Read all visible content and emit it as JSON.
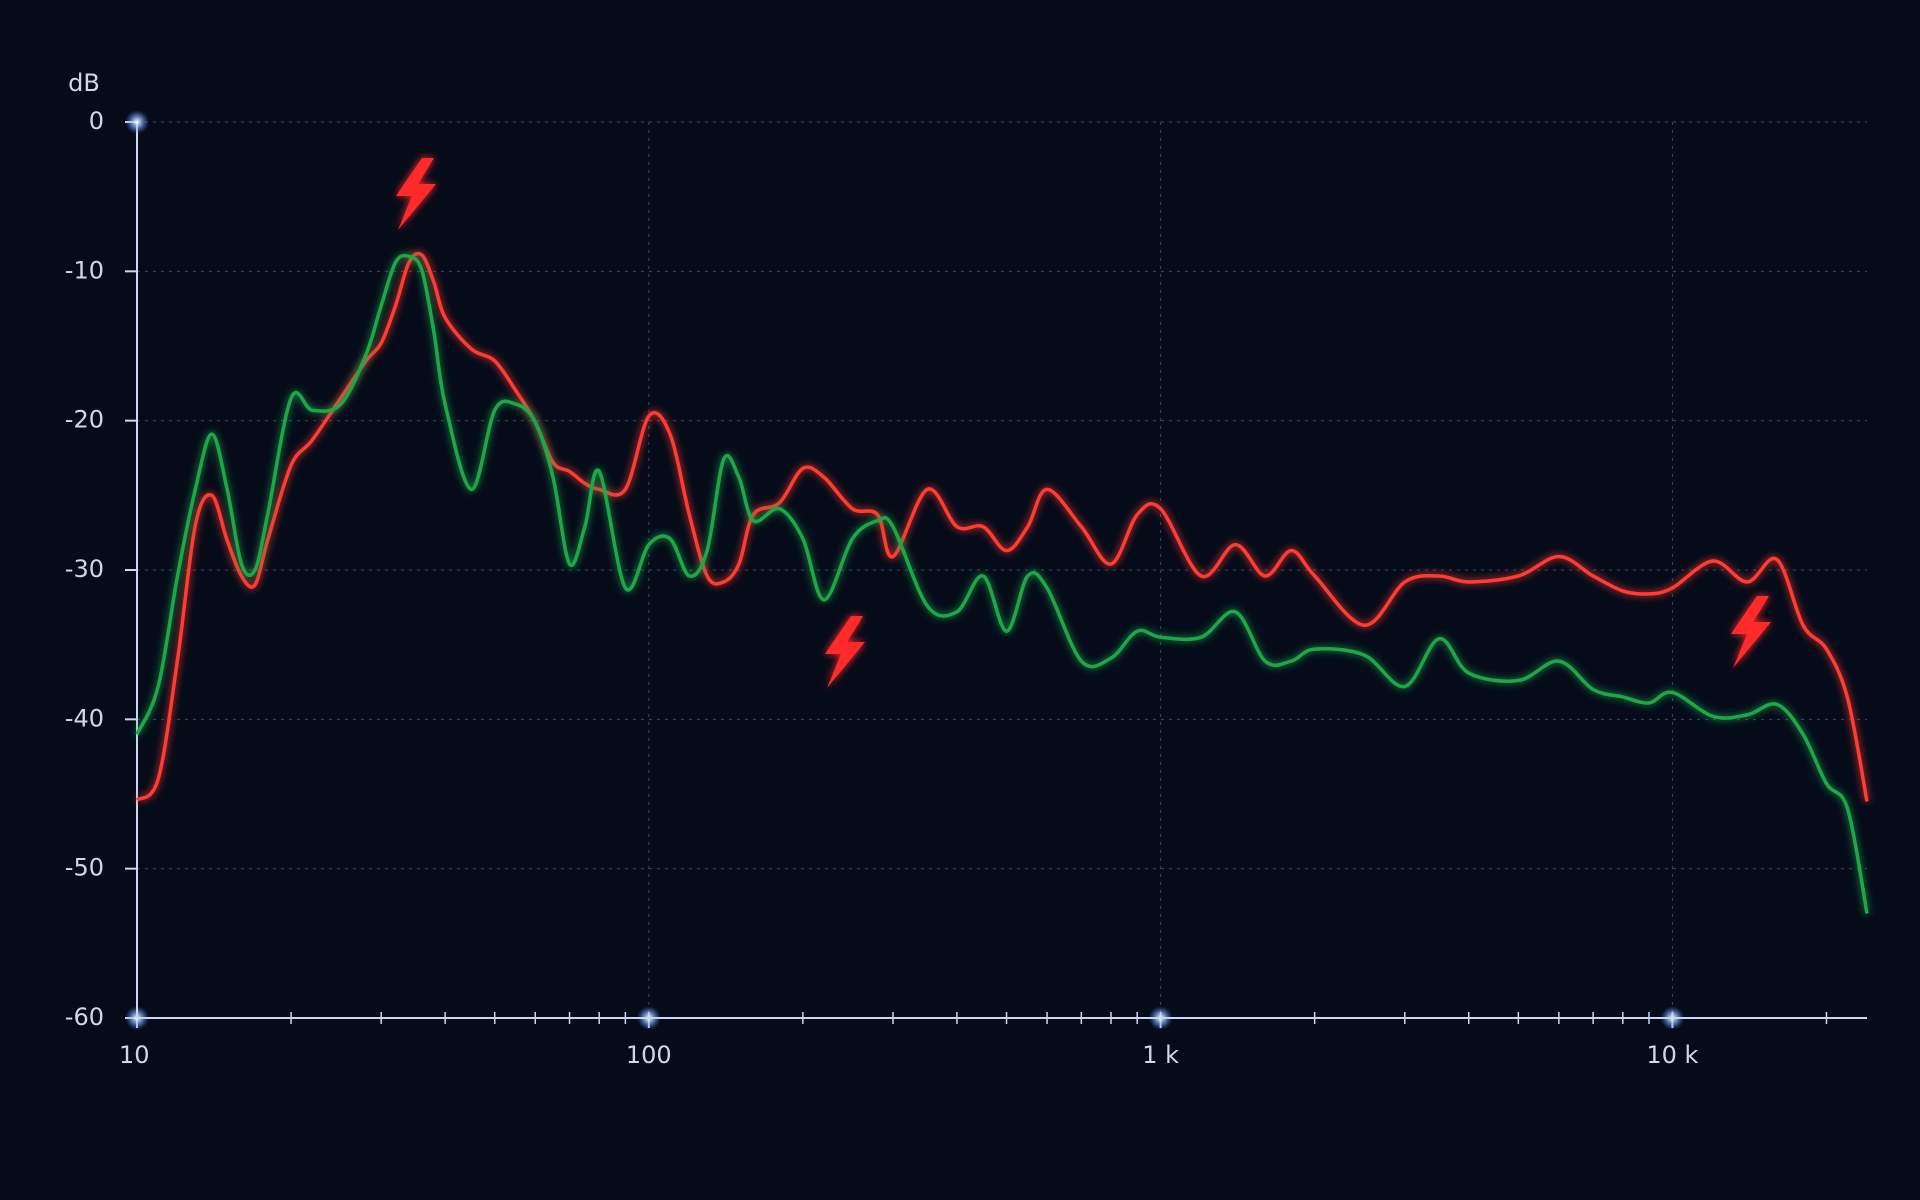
{
  "chart_data": {
    "type": "line",
    "ylabel": "dB",
    "xscale": "log",
    "grid": true,
    "xlim": [
      10,
      24000
    ],
    "ylim": [
      -60,
      0
    ],
    "xticks": [
      10,
      100,
      {
        "value": 1000,
        "label": "1 k"
      },
      {
        "value": 10000,
        "label": "10 k"
      }
    ],
    "xminorticks": [
      20,
      30,
      40,
      50,
      60,
      70,
      80,
      90,
      200,
      300,
      400,
      500,
      600,
      700,
      800,
      900,
      2000,
      3000,
      4000,
      5000,
      6000,
      7000,
      8000,
      9000,
      20000
    ],
    "yticks": [
      0,
      -10,
      -20,
      -30,
      -40,
      -50,
      -60
    ],
    "x": [
      10,
      11,
      12,
      13,
      14,
      15,
      16,
      17,
      18,
      20,
      22,
      25,
      28,
      30,
      32,
      34,
      36,
      38,
      40,
      45,
      50,
      55,
      60,
      65,
      70,
      75,
      80,
      90,
      100,
      110,
      120,
      130,
      140,
      150,
      160,
      180,
      200,
      220,
      250,
      280,
      300,
      350,
      400,
      450,
      500,
      550,
      600,
      700,
      800,
      900,
      1000,
      1200,
      1400,
      1600,
      1800,
      2000,
      2500,
      3000,
      3500,
      4000,
      5000,
      6000,
      7000,
      8000,
      9000,
      10000,
      12000,
      14000,
      16000,
      18000,
      20000,
      22000,
      24000
    ],
    "series": [
      {
        "color": "#ff3b30",
        "values": [
          -45.4,
          -44,
          -36,
          -27,
          -25,
          -28,
          -30.4,
          -31,
          -28,
          -23,
          -21.3,
          -18.5,
          -16,
          -14.8,
          -12.3,
          -9.4,
          -8.9,
          -10.7,
          -13.1,
          -15.2,
          -16,
          -18,
          -20.1,
          -22.8,
          -23.4,
          -24.2,
          -24.6,
          -24.6,
          -19.7,
          -20.9,
          -26.3,
          -30.4,
          -30.8,
          -29.6,
          -26.3,
          -25.5,
          -23.2,
          -23.8,
          -25.9,
          -26.3,
          -29.1,
          -24.6,
          -27.1,
          -27.1,
          -28.7,
          -27.1,
          -24.6,
          -27.1,
          -29.6,
          -26.3,
          -25.9,
          -30.4,
          -28.3,
          -30.4,
          -28.7,
          -30.4,
          -33.7,
          -30.8,
          -30.4,
          -30.8,
          -30.4,
          -29.1,
          -30.4,
          -31.4,
          -31.6,
          -31.2,
          -29.4,
          -30.8,
          -29.3,
          -33.7,
          -35.3,
          -38.6,
          -45.5
        ]
      },
      {
        "color": "#1fa84a",
        "values": [
          -41,
          -37.8,
          -30.4,
          -24.6,
          -20.9,
          -24.6,
          -29.6,
          -30,
          -26.3,
          -18.5,
          -19.3,
          -18.9,
          -15.6,
          -12.3,
          -9.4,
          -9,
          -9.9,
          -14,
          -18.9,
          -24.6,
          -19.3,
          -18.9,
          -20.1,
          -23.8,
          -29.6,
          -27.1,
          -23.4,
          -31.2,
          -28.3,
          -27.9,
          -30.4,
          -28.7,
          -22.6,
          -23.8,
          -26.7,
          -25.9,
          -27.9,
          -32,
          -27.9,
          -26.7,
          -27.1,
          -32.4,
          -32.8,
          -30.4,
          -34.1,
          -30.4,
          -31.2,
          -36.1,
          -35.9,
          -34.1,
          -34.5,
          -34.5,
          -32.8,
          -36.1,
          -36.1,
          -35.3,
          -35.7,
          -37.8,
          -34.6,
          -36.9,
          -37.4,
          -36.1,
          -38,
          -38.5,
          -38.9,
          -38.2,
          -39.8,
          -39.7,
          -39,
          -41,
          -44.3,
          -46,
          -53
        ]
      }
    ]
  }
}
